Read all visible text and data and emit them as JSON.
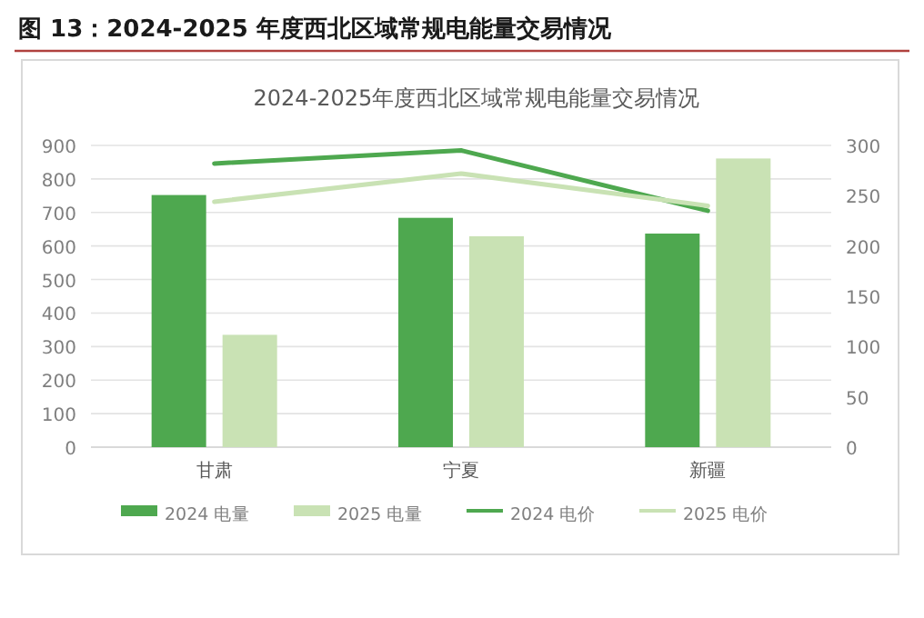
{
  "chart_data": {
    "type": "bar",
    "title": "图 13：2024-2025 年度西北区域常规电能量交易情况",
    "subtitle": "2024-2025年度西北区域常规电能量交易情况",
    "categories": [
      "甘肃",
      "宁夏",
      "新疆"
    ],
    "series": [
      {
        "name": "2024 电量",
        "color": "#4ea84f",
        "values": [
          752,
          684,
          637
        ]
      },
      {
        "name": "2025 电量",
        "color": "#c9e2b4",
        "values": [
          335,
          629,
          861
        ]
      },
      {
        "name": "2024 电价",
        "type": "line",
        "axis": "y2",
        "color": "#4ea84f",
        "values": [
          282,
          295,
          235
        ]
      },
      {
        "name": "2025 电价",
        "type": "line",
        "axis": "y2",
        "color": "#c9e2b4",
        "values": [
          244,
          272,
          240
        ]
      }
    ],
    "ylim": [
      0,
      900
    ],
    "yticks": [
      0,
      100,
      200,
      300,
      400,
      500,
      600,
      700,
      800,
      900
    ],
    "y2lim": [
      0,
      300
    ],
    "y2ticks": [
      0,
      50,
      100,
      150,
      200,
      250,
      300
    ],
    "grid": "y",
    "legend": "bottom",
    "marker": "none"
  }
}
